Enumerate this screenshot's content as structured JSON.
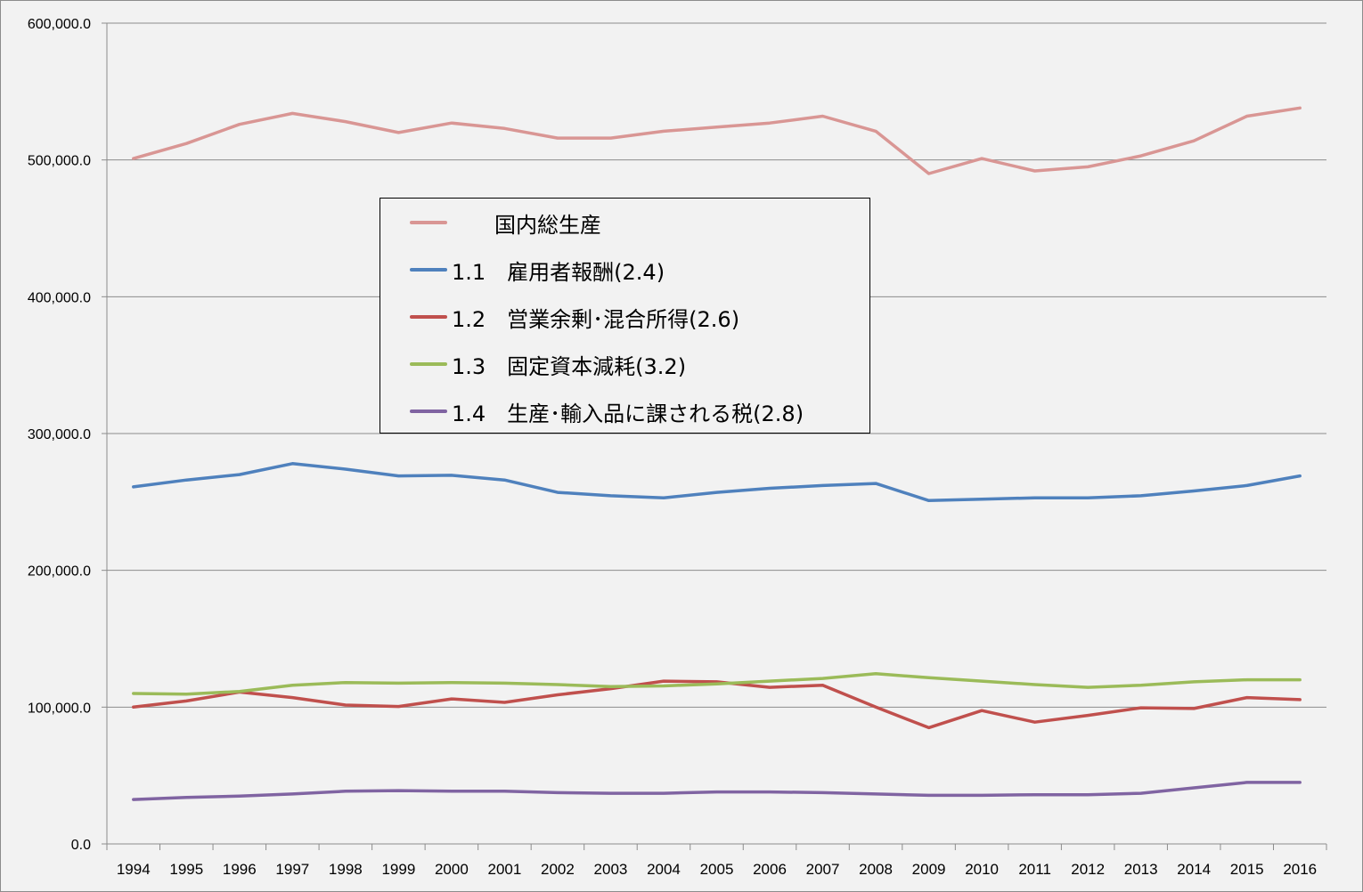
{
  "chart_data": {
    "type": "line",
    "x": [
      1994,
      1995,
      1996,
      1997,
      1998,
      1999,
      2000,
      2001,
      2002,
      2003,
      2004,
      2005,
      2006,
      2007,
      2008,
      2009,
      2010,
      2011,
      2012,
      2013,
      2014,
      2015,
      2016
    ],
    "x_tick_labels": [
      "1994",
      "1995",
      "1996",
      "1997",
      "1998",
      "1999",
      "2000",
      "2001",
      "2002",
      "2003",
      "2004",
      "2005",
      "2006",
      "2007",
      "2008",
      "2009",
      "2010",
      "2011",
      "2012",
      "2013",
      "2014",
      "2015",
      "2016"
    ],
    "ylim": [
      0,
      600000
    ],
    "y_tick_labels": [
      "0.0",
      "100,000.0",
      "200,000.0",
      "300,000.0",
      "400,000.0",
      "500,000.0",
      "600,000.0"
    ],
    "grid": "horizontal",
    "legend_position": "upper-center",
    "series": [
      {
        "name": "　　国内総生産",
        "color": "#d99694",
        "values": [
          501000,
          512000,
          526000,
          534000,
          528000,
          520000,
          527000,
          523000,
          516000,
          516000,
          521000,
          524000,
          527000,
          532000,
          521000,
          490000,
          501000,
          492000,
          495000,
          503000,
          514000,
          532000,
          538000
        ]
      },
      {
        "name": "1.1　雇用者報酬(2.4)",
        "color": "#4f81bd",
        "values": [
          261000,
          266000,
          270000,
          278000,
          274000,
          269000,
          269500,
          266000,
          257000,
          254500,
          253000,
          257000,
          260000,
          262000,
          263500,
          251000,
          252000,
          253000,
          253000,
          254500,
          258000,
          262000,
          269000
        ]
      },
      {
        "name": "1.2　営業余剰･混合所得(2.6)",
        "color": "#c0504d",
        "values": [
          100000,
          104500,
          111000,
          107000,
          101500,
          100500,
          106000,
          103500,
          109000,
          113500,
          119000,
          118500,
          114500,
          116000,
          100000,
          85000,
          97500,
          89000,
          94000,
          99500,
          99000,
          107000,
          105500
        ]
      },
      {
        "name": "1.3　固定資本減耗(3.2)",
        "color": "#9bbb59",
        "values": [
          110000,
          109500,
          111500,
          116000,
          118000,
          117500,
          118000,
          117500,
          116500,
          115000,
          115500,
          117000,
          119000,
          121000,
          124500,
          121500,
          119000,
          116500,
          114500,
          116000,
          118500,
          120000,
          120000
        ]
      },
      {
        "name": "1.4　生産･輸入品に課される税(2.8)",
        "color": "#8064a2",
        "values": [
          32500,
          34000,
          35000,
          36500,
          38500,
          39000,
          38500,
          38500,
          37500,
          37000,
          37000,
          38000,
          38000,
          37500,
          36500,
          35500,
          35500,
          36000,
          36000,
          37000,
          41000,
          45000,
          45000
        ]
      }
    ]
  }
}
